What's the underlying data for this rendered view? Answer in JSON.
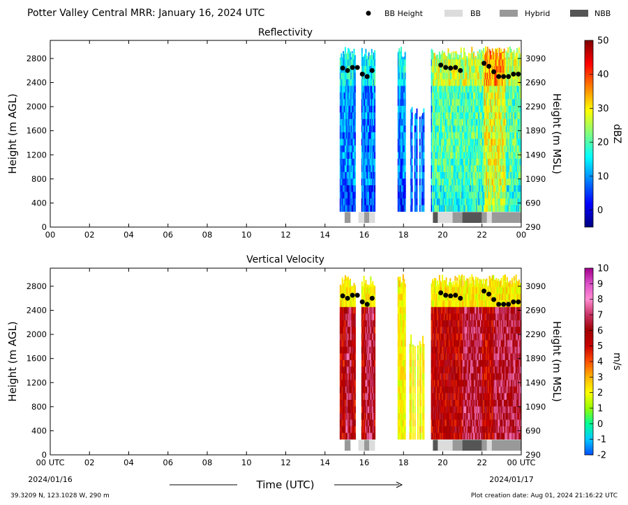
{
  "header": {
    "title": "Potter Valley Central MRR:  January 16, 2024 UTC",
    "legend": [
      {
        "label": "BB Height",
        "kind": "marker",
        "color": "#000000"
      },
      {
        "label": "BB",
        "kind": "patch",
        "color": "#dcdcdc"
      },
      {
        "label": "Hybrid",
        "kind": "patch",
        "color": "#999999"
      },
      {
        "label": "NBB",
        "kind": "patch",
        "color": "#555555"
      }
    ]
  },
  "footer": {
    "location": "39.3209 N, 123.1028 W, 290 m",
    "creation": "Plot creation date: Aug 01, 2024 21:16:22 UTC",
    "xlabel": "Time (UTC)",
    "start_date": "2024/01/16",
    "end_date": "2024/01/17"
  },
  "chart_data": [
    {
      "type": "heatmap",
      "title": "Reflectivity",
      "ylabel": "Height (m AGL)",
      "ylabel_right": "Height (m MSL)",
      "x_ticks": [
        "00",
        "02",
        "04",
        "06",
        "08",
        "10",
        "12",
        "14",
        "16",
        "18",
        "20",
        "22",
        "00"
      ],
      "xlim_hours": [
        0,
        24
      ],
      "y_ticks": [
        "0",
        "400",
        "800",
        "1200",
        "1600",
        "2000",
        "2400",
        "2800"
      ],
      "y_ticks_right": [
        "290",
        "690",
        "1090",
        "1490",
        "1890",
        "2290",
        "2690",
        "3090"
      ],
      "ylim": [
        0,
        3100
      ],
      "colorbar": {
        "label": "dBZ",
        "range": [
          -5,
          50
        ],
        "ticks": [
          "0",
          "10",
          "20",
          "30",
          "40",
          "50"
        ],
        "colors": [
          "#00007f",
          "#0000ff",
          "#007fff",
          "#00ffff",
          "#7fff7f",
          "#ffff00",
          "#ff7f00",
          "#ff0000",
          "#7f0000"
        ]
      }
    },
    {
      "type": "heatmap",
      "title": "Vertical Velocity",
      "ylabel": "Height (m AGL)",
      "ylabel_right": "Height (m MSL)",
      "x_ticks": [
        "00 UTC",
        "02",
        "04",
        "06",
        "08",
        "10",
        "12",
        "14",
        "16",
        "18",
        "20",
        "22",
        "00 UTC"
      ],
      "xlim_hours": [
        0,
        24
      ],
      "y_ticks": [
        "0",
        "400",
        "800",
        "1200",
        "1600",
        "2000",
        "2400",
        "2800"
      ],
      "y_ticks_right": [
        "290",
        "690",
        "1090",
        "1490",
        "1890",
        "2290",
        "2690",
        "3090"
      ],
      "ylim": [
        0,
        3100
      ],
      "colorbar": {
        "label": "m/s",
        "range": [
          -2,
          10
        ],
        "ticks": [
          "-2",
          "-1",
          "0",
          "1",
          "2",
          "3",
          "4",
          "5",
          "6",
          "7",
          "8",
          "9",
          "10"
        ],
        "colors": [
          "#0050ff",
          "#00c8ff",
          "#00ff96",
          "#96ff00",
          "#ffff00",
          "#ffb400",
          "#ff5000",
          "#c80000",
          "#a00000",
          "#c83264",
          "#ff8cd2",
          "#dc50c8",
          "#a0008c"
        ]
      }
    }
  ],
  "bb_height": [
    {
      "t": 14.9,
      "h": 2640
    },
    {
      "t": 15.15,
      "h": 2600
    },
    {
      "t": 15.4,
      "h": 2650
    },
    {
      "t": 15.65,
      "h": 2650
    },
    {
      "t": 15.9,
      "h": 2540
    },
    {
      "t": 16.15,
      "h": 2500
    },
    {
      "t": 16.4,
      "h": 2600
    },
    {
      "t": 19.9,
      "h": 2690
    },
    {
      "t": 20.15,
      "h": 2650
    },
    {
      "t": 20.4,
      "h": 2640
    },
    {
      "t": 20.65,
      "h": 2650
    },
    {
      "t": 20.9,
      "h": 2600
    },
    {
      "t": 22.1,
      "h": 2720
    },
    {
      "t": 22.35,
      "h": 2670
    },
    {
      "t": 22.6,
      "h": 2580
    },
    {
      "t": 22.85,
      "h": 2500
    },
    {
      "t": 23.1,
      "h": 2500
    },
    {
      "t": 23.35,
      "h": 2500
    },
    {
      "t": 23.6,
      "h": 2540
    },
    {
      "t": 23.85,
      "h": 2540
    }
  ],
  "bb_type": [
    {
      "start": 15.0,
      "end": 15.3,
      "type": "Hybrid"
    },
    {
      "start": 15.7,
      "end": 16.0,
      "type": "BB"
    },
    {
      "start": 16.0,
      "end": 16.25,
      "type": "Hybrid"
    },
    {
      "start": 16.25,
      "end": 16.55,
      "type": "BB"
    },
    {
      "start": 19.5,
      "end": 19.75,
      "type": "NBB"
    },
    {
      "start": 19.75,
      "end": 20.5,
      "type": "BB"
    },
    {
      "start": 20.5,
      "end": 21.0,
      "type": "Hybrid"
    },
    {
      "start": 21.0,
      "end": 22.0,
      "type": "NBB"
    },
    {
      "start": 22.0,
      "end": 22.25,
      "type": "Hybrid"
    },
    {
      "start": 22.25,
      "end": 22.5,
      "type": "BB"
    },
    {
      "start": 22.5,
      "end": 24.0,
      "type": "Hybrid"
    }
  ]
}
